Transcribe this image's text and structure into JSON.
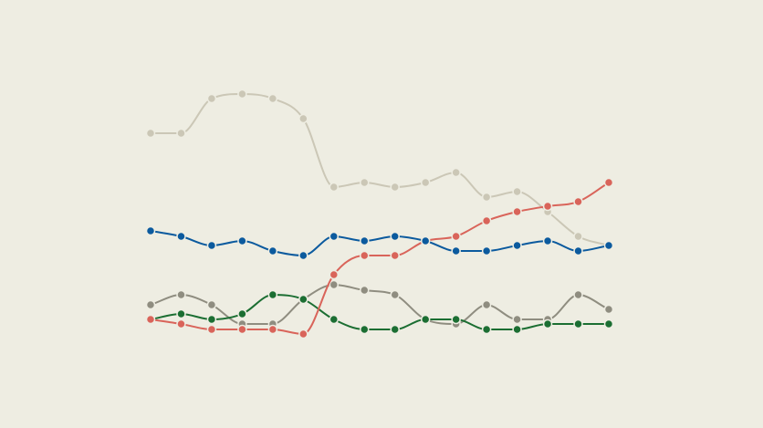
{
  "chart_data": {
    "type": "line",
    "title": "",
    "xlabel": "",
    "ylabel": "",
    "x": [
      1,
      2,
      3,
      4,
      5,
      6,
      7,
      8,
      9,
      10,
      11,
      12,
      13,
      14,
      15,
      16
    ],
    "ylim": [
      0,
      80
    ],
    "grid": false,
    "legend": "none",
    "curve": "smooth",
    "background": "#eeede2",
    "series": [
      {
        "color": "#cbc7b6",
        "values": [
          50.8,
          50.8,
          58.4,
          59.4,
          58.4,
          54,
          39,
          40,
          39,
          40,
          42.2,
          36.8,
          38,
          33.6,
          28.2,
          26.2
        ]
      },
      {
        "color": "#8f8d80",
        "values": [
          13.2,
          15.4,
          13.2,
          9,
          9,
          14.4,
          17.6,
          16.4,
          15.4,
          10,
          9,
          13.2,
          10,
          10,
          15.4,
          12.2
        ]
      },
      {
        "color": "#1b6e32",
        "values": [
          10,
          11.2,
          10,
          11.2,
          15.4,
          14.4,
          10,
          7.8,
          7.8,
          10,
          10,
          7.8,
          7.8,
          9,
          9,
          9
        ]
      },
      {
        "color": "#d9645a",
        "values": [
          10,
          9,
          7.8,
          7.8,
          7.8,
          6.8,
          19.8,
          24,
          24,
          27.2,
          28.2,
          31.6,
          33.6,
          34.8,
          35.8,
          40
        ]
      },
      {
        "color": "#0b5a9e",
        "values": [
          29.4,
          28.2,
          26.2,
          27.2,
          25,
          24,
          28.2,
          27.2,
          28.2,
          27.2,
          25,
          25,
          26.2,
          27.2,
          25,
          26.2
        ]
      }
    ]
  }
}
